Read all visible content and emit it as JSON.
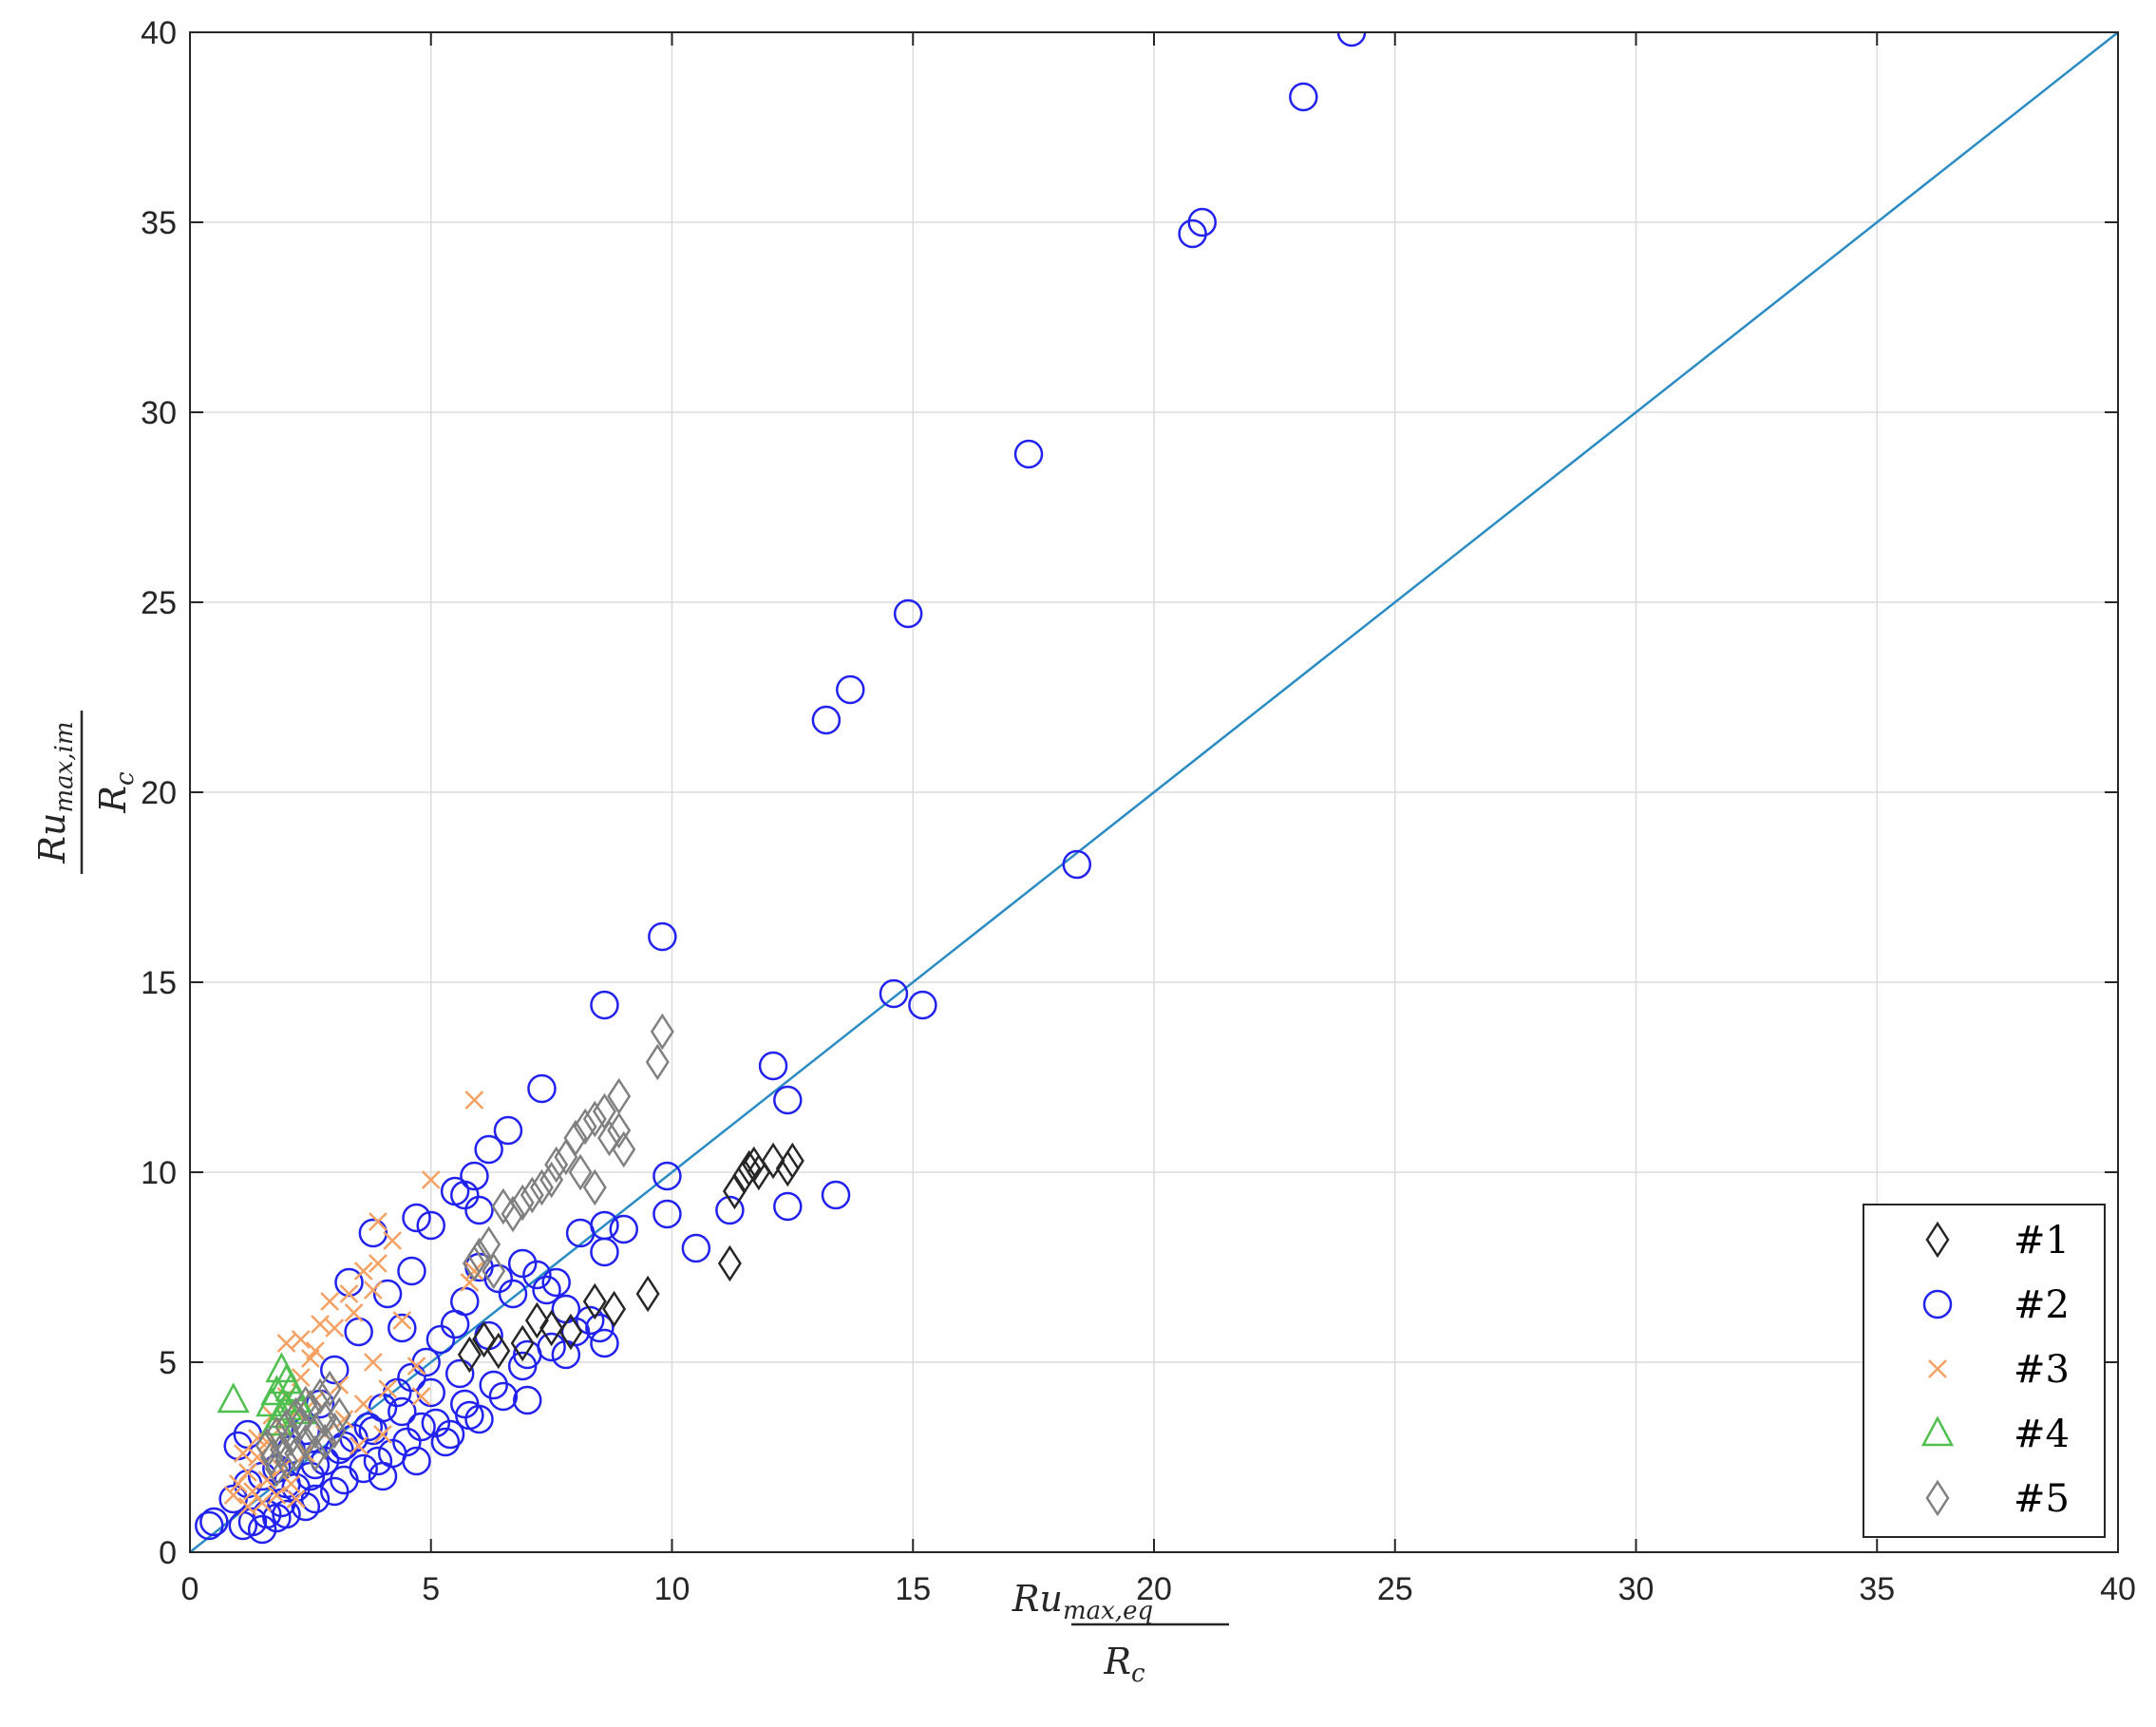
{
  "colors": {
    "series1": "#262626",
    "series2": "#2222ee",
    "series3": "#f4a163",
    "series4": "#4fbf4f",
    "series5": "#808080",
    "reference_line": "#2b8cc4",
    "grid": "#dcdcdc",
    "axes": "#262626"
  },
  "chart_data": {
    "type": "scatter",
    "title": "",
    "xlabel": {
      "main": "Ru",
      "sub": "max,eq",
      "denominator": "R",
      "den_sub": "c"
    },
    "ylabel": {
      "main": "Ru",
      "sub": "max,im",
      "denominator": "R",
      "den_sub": "c"
    },
    "xlim": [
      0,
      40
    ],
    "ylim": [
      0,
      40
    ],
    "xticks": [
      "0",
      "5",
      "10",
      "15",
      "20",
      "25",
      "30",
      "35",
      "40"
    ],
    "yticks": [
      "0",
      "5",
      "10",
      "15",
      "20",
      "25",
      "30",
      "35",
      "40"
    ],
    "grid": true,
    "legend_position": "bottom-right",
    "reference_line": {
      "from": [
        0,
        0
      ],
      "to": [
        40,
        40
      ]
    },
    "series": [
      {
        "name": "#1",
        "marker": "diamond",
        "points": [
          [
            11.2,
            7.6
          ],
          [
            9.5,
            6.8
          ],
          [
            8.8,
            6.4
          ],
          [
            8.4,
            6.6
          ],
          [
            7.9,
            5.8
          ],
          [
            7.5,
            5.9
          ],
          [
            7.2,
            6.1
          ],
          [
            6.9,
            5.5
          ],
          [
            6.4,
            5.3
          ],
          [
            6.1,
            5.6
          ],
          [
            5.8,
            5.2
          ],
          [
            11.3,
            9.5
          ],
          [
            11.5,
            9.9
          ],
          [
            11.6,
            10.1
          ],
          [
            11.8,
            10.0
          ],
          [
            12.1,
            10.3
          ],
          [
            12.4,
            10.1
          ],
          [
            12.5,
            10.3
          ],
          [
            11.7,
            10.2
          ]
        ]
      },
      {
        "name": "#2",
        "marker": "circle",
        "points": [
          [
            24.1,
            40.0
          ],
          [
            23.1,
            38.3
          ],
          [
            21.0,
            35.0
          ],
          [
            20.8,
            34.7
          ],
          [
            17.4,
            28.9
          ],
          [
            14.9,
            24.7
          ],
          [
            13.7,
            22.7
          ],
          [
            13.2,
            21.9
          ],
          [
            18.4,
            18.1
          ],
          [
            14.6,
            14.7
          ],
          [
            15.2,
            14.4
          ],
          [
            9.8,
            16.2
          ],
          [
            8.6,
            14.4
          ],
          [
            12.1,
            12.8
          ],
          [
            12.4,
            11.9
          ],
          [
            7.3,
            12.2
          ],
          [
            6.6,
            11.1
          ],
          [
            6.2,
            10.6
          ],
          [
            5.9,
            9.9
          ],
          [
            9.9,
            9.9
          ],
          [
            13.4,
            9.4
          ],
          [
            12.4,
            9.1
          ],
          [
            11.2,
            9.0
          ],
          [
            9.9,
            8.9
          ],
          [
            9.0,
            8.5
          ],
          [
            8.6,
            8.6
          ],
          [
            10.5,
            8.0
          ],
          [
            8.6,
            7.9
          ],
          [
            8.1,
            8.4
          ],
          [
            5.0,
            8.6
          ],
          [
            4.7,
            8.8
          ],
          [
            3.8,
            8.4
          ],
          [
            6.0,
            9.0
          ],
          [
            5.7,
            9.4
          ],
          [
            5.5,
            9.5
          ],
          [
            8.6,
            5.5
          ],
          [
            8.5,
            5.9
          ],
          [
            8.3,
            6.1
          ],
          [
            7.8,
            6.4
          ],
          [
            7.6,
            7.1
          ],
          [
            7.4,
            6.9
          ],
          [
            7.2,
            7.3
          ],
          [
            6.9,
            7.6
          ],
          [
            6.7,
            6.8
          ],
          [
            6.4,
            7.2
          ],
          [
            6.0,
            7.5
          ],
          [
            5.7,
            6.6
          ],
          [
            5.5,
            6.0
          ],
          [
            5.2,
            5.6
          ],
          [
            4.9,
            5.0
          ],
          [
            4.6,
            4.6
          ],
          [
            4.3,
            4.2
          ],
          [
            4.0,
            3.8
          ],
          [
            3.7,
            3.3
          ],
          [
            3.4,
            3.0
          ],
          [
            3.1,
            2.7
          ],
          [
            2.8,
            2.4
          ],
          [
            2.5,
            2.0
          ],
          [
            2.2,
            1.7
          ],
          [
            1.9,
            1.3
          ],
          [
            1.6,
            1.0
          ],
          [
            1.3,
            0.8
          ],
          [
            1.1,
            0.7
          ],
          [
            0.5,
            0.8
          ],
          [
            0.4,
            0.7
          ],
          [
            1.5,
            0.6
          ],
          [
            2.0,
            1.0
          ],
          [
            2.6,
            1.4
          ],
          [
            3.2,
            1.9
          ],
          [
            3.9,
            2.4
          ],
          [
            4.5,
            2.9
          ],
          [
            5.1,
            3.4
          ],
          [
            5.7,
            3.9
          ],
          [
            6.3,
            4.4
          ],
          [
            6.9,
            4.9
          ],
          [
            7.5,
            5.4
          ],
          [
            8.0,
            5.8
          ],
          [
            5.8,
            3.6
          ],
          [
            5.4,
            3.1
          ],
          [
            4.8,
            3.3
          ],
          [
            4.2,
            2.6
          ],
          [
            3.6,
            2.2
          ],
          [
            3.0,
            1.6
          ],
          [
            2.4,
            1.2
          ],
          [
            1.8,
            0.9
          ],
          [
            4.4,
            5.9
          ],
          [
            4.1,
            6.8
          ],
          [
            4.6,
            7.4
          ],
          [
            3.3,
            7.1
          ],
          [
            3.5,
            5.8
          ],
          [
            3.0,
            4.8
          ],
          [
            2.7,
            3.9
          ],
          [
            2.4,
            3.2
          ],
          [
            2.1,
            2.7
          ],
          [
            1.8,
            2.2
          ],
          [
            1.5,
            2.0
          ],
          [
            1.2,
            1.8
          ],
          [
            0.9,
            1.4
          ],
          [
            1.0,
            2.8
          ],
          [
            1.2,
            3.1
          ],
          [
            6.5,
            4.1
          ],
          [
            7.0,
            5.2
          ],
          [
            6.2,
            5.7
          ],
          [
            5.6,
            4.7
          ],
          [
            5.0,
            4.2
          ],
          [
            4.4,
            3.7
          ],
          [
            3.8,
            3.2
          ],
          [
            3.2,
            2.8
          ],
          [
            2.6,
            2.3
          ],
          [
            2.0,
            1.8
          ],
          [
            7.8,
            5.2
          ],
          [
            7.0,
            4.0
          ],
          [
            6.0,
            3.5
          ],
          [
            5.3,
            2.9
          ],
          [
            4.7,
            2.4
          ],
          [
            4.0,
            2.0
          ]
        ]
      },
      {
        "name": "#3",
        "marker": "cross",
        "points": [
          [
            5.9,
            11.9
          ],
          [
            5.0,
            9.8
          ],
          [
            3.9,
            8.7
          ],
          [
            4.2,
            8.2
          ],
          [
            3.6,
            7.4
          ],
          [
            3.3,
            6.8
          ],
          [
            2.9,
            6.6
          ],
          [
            2.7,
            6.0
          ],
          [
            2.3,
            5.6
          ],
          [
            2.0,
            5.5
          ],
          [
            2.5,
            5.1
          ],
          [
            3.9,
            7.6
          ],
          [
            4.4,
            6.1
          ],
          [
            3.8,
            5.0
          ],
          [
            3.1,
            4.4
          ],
          [
            2.6,
            4.0
          ],
          [
            2.2,
            3.7
          ],
          [
            1.9,
            3.3
          ],
          [
            1.6,
            2.9
          ],
          [
            1.4,
            2.5
          ],
          [
            1.2,
            2.1
          ],
          [
            1.0,
            1.8
          ],
          [
            1.3,
            1.6
          ],
          [
            1.6,
            1.9
          ],
          [
            1.9,
            2.2
          ],
          [
            2.1,
            1.8
          ],
          [
            2.4,
            2.6
          ],
          [
            2.8,
            3.1
          ],
          [
            3.2,
            3.5
          ],
          [
            3.6,
            3.9
          ],
          [
            5.9,
            7.4
          ],
          [
            5.8,
            7.1
          ],
          [
            4.7,
            4.9
          ],
          [
            4.1,
            4.3
          ],
          [
            1.5,
            1.3
          ],
          [
            1.8,
            1.5
          ],
          [
            2.2,
            1.4
          ],
          [
            1.1,
            2.6
          ],
          [
            1.4,
            3.0
          ],
          [
            1.7,
            3.6
          ],
          [
            2.0,
            4.1
          ],
          [
            2.3,
            4.6
          ],
          [
            2.6,
            5.3
          ],
          [
            3.0,
            5.9
          ],
          [
            3.4,
            6.3
          ],
          [
            3.8,
            6.9
          ],
          [
            4.0,
            3.1
          ],
          [
            3.5,
            2.8
          ],
          [
            4.8,
            4.1
          ],
          [
            1.2,
            1.2
          ],
          [
            0.9,
            1.5
          ]
        ]
      },
      {
        "name": "#4",
        "marker": "triangle",
        "points": [
          [
            0.9,
            4.0
          ],
          [
            1.9,
            4.8
          ],
          [
            2.0,
            4.5
          ],
          [
            1.8,
            4.2
          ],
          [
            2.1,
            4.3
          ],
          [
            1.7,
            3.9
          ],
          [
            2.2,
            4.0
          ],
          [
            2.0,
            3.8
          ],
          [
            1.9,
            3.6
          ],
          [
            2.3,
            3.7
          ],
          [
            1.8,
            3.4
          ]
        ]
      },
      {
        "name": "#5",
        "marker": "diamond",
        "points": [
          [
            9.8,
            13.7
          ],
          [
            9.7,
            12.9
          ],
          [
            8.9,
            12.0
          ],
          [
            8.6,
            11.6
          ],
          [
            8.4,
            11.4
          ],
          [
            8.2,
            11.2
          ],
          [
            8.9,
            11.1
          ],
          [
            9.0,
            10.6
          ],
          [
            8.7,
            10.9
          ],
          [
            8.0,
            10.9
          ],
          [
            7.8,
            10.4
          ],
          [
            7.6,
            10.2
          ],
          [
            7.5,
            9.8
          ],
          [
            7.3,
            9.6
          ],
          [
            7.1,
            9.4
          ],
          [
            6.9,
            9.2
          ],
          [
            6.7,
            8.9
          ],
          [
            6.5,
            9.1
          ],
          [
            8.1,
            10.0
          ],
          [
            8.4,
            9.6
          ],
          [
            6.2,
            8.1
          ],
          [
            6.0,
            7.8
          ],
          [
            5.9,
            7.6
          ],
          [
            6.3,
            7.4
          ],
          [
            2.2,
            2.6
          ],
          [
            2.4,
            2.9
          ],
          [
            2.6,
            3.2
          ],
          [
            2.8,
            3.5
          ],
          [
            2.5,
            3.8
          ],
          [
            2.7,
            4.1
          ],
          [
            2.9,
            4.3
          ],
          [
            2.3,
            3.4
          ],
          [
            2.1,
            3.0
          ],
          [
            1.9,
            2.7
          ],
          [
            1.7,
            2.5
          ],
          [
            1.6,
            2.8
          ],
          [
            1.8,
            3.1
          ],
          [
            2.0,
            3.3
          ],
          [
            2.2,
            3.6
          ],
          [
            2.4,
            3.9
          ],
          [
            2.6,
            2.6
          ],
          [
            2.8,
            2.9
          ],
          [
            3.0,
            3.2
          ],
          [
            3.1,
            3.6
          ],
          [
            2.0,
            2.4
          ],
          [
            1.8,
            2.2
          ]
        ]
      }
    ]
  }
}
